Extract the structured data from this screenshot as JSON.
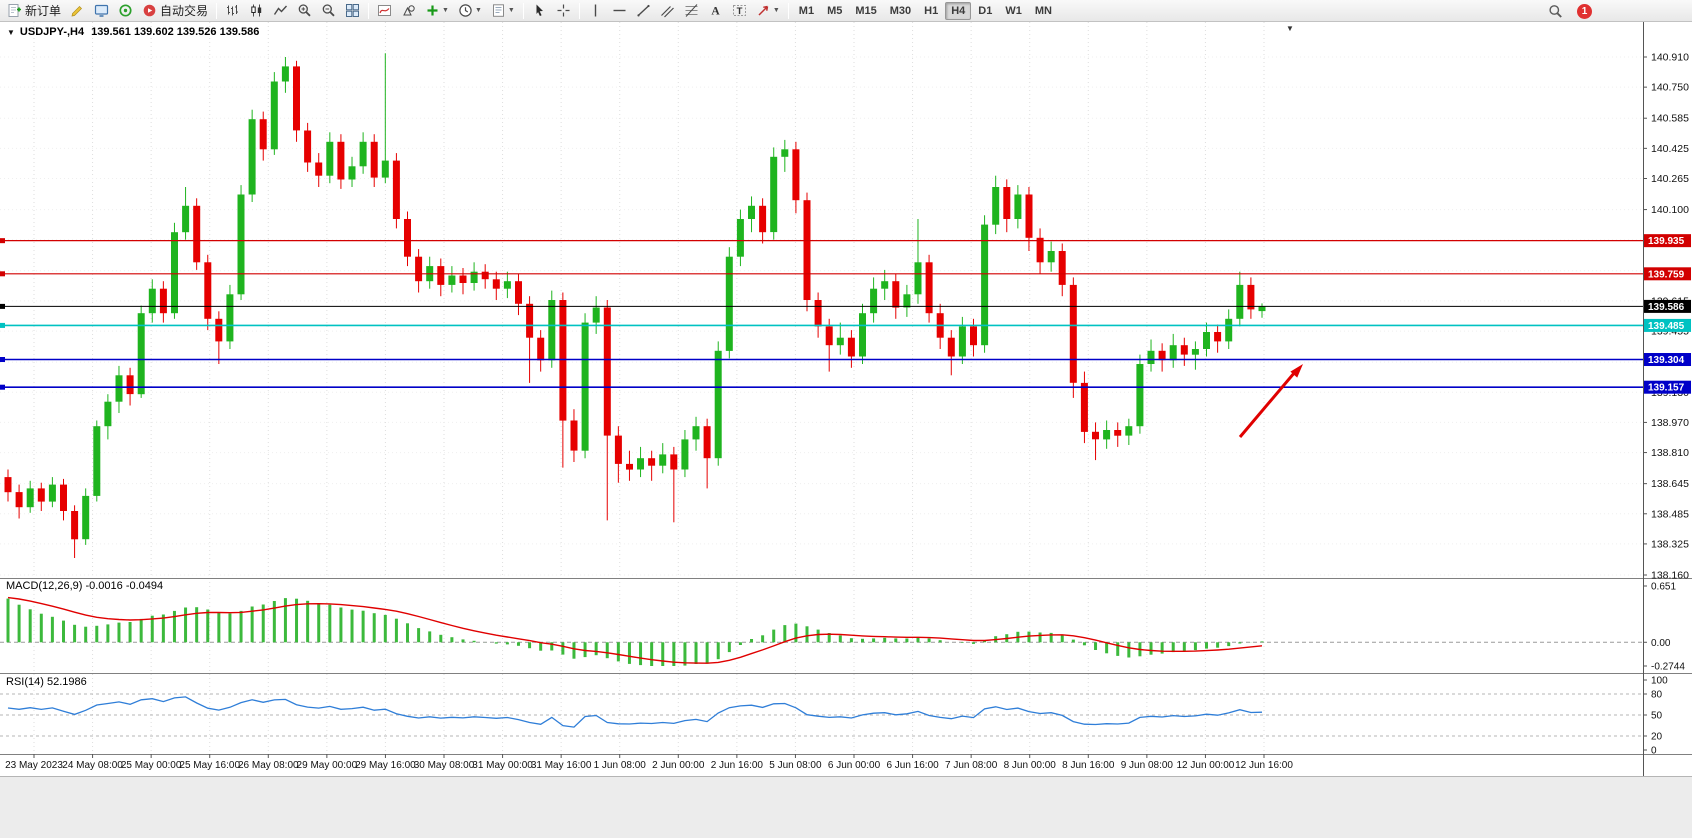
{
  "toolbar": {
    "new_order_label": "新订单",
    "auto_trading_label": "自动交易",
    "timeframes": [
      "M1",
      "M5",
      "M15",
      "M30",
      "H1",
      "H4",
      "D1",
      "W1",
      "MN"
    ],
    "active_timeframe": "H4",
    "notification_count": "1",
    "overflow_chevron": "▼"
  },
  "chart": {
    "collapse_arrow": "▼",
    "symbol_title": "USDJPY-,H4",
    "ohlc_values": "139.561 139.602 139.526 139.586",
    "price_axis": [
      "140.910",
      "140.750",
      "140.585",
      "140.425",
      "140.265",
      "140.100",
      "139.940",
      "139.775",
      "139.615",
      "139.455",
      "139.290",
      "139.130",
      "138.970",
      "138.810",
      "138.645",
      "138.485",
      "138.325",
      "138.160"
    ],
    "time_axis": [
      "23 May 2023",
      "24 May 08:00",
      "25 May 00:00",
      "25 May 16:00",
      "26 May 08:00",
      "29 May 00:00",
      "29 May 16:00",
      "30 May 08:00",
      "31 May 00:00",
      "31 May 16:00",
      "1 Jun 08:00",
      "2 Jun 00:00",
      "2 Jun 16:00",
      "5 Jun 08:00",
      "6 Jun 00:00",
      "6 Jun 16:00",
      "7 Jun 08:00",
      "8 Jun 00:00",
      "8 Jun 16:00",
      "9 Jun 08:00",
      "12 Jun 00:00",
      "12 Jun 16:00"
    ],
    "hlines": [
      {
        "price": "139.935",
        "color": "#d20000",
        "width": 1.2
      },
      {
        "price": "139.759",
        "color": "#d20000",
        "width": 1.2
      },
      {
        "price": "139.586",
        "color": "#000000",
        "width": 1,
        "role": "bid"
      },
      {
        "price": "139.485",
        "color": "#00c2c2",
        "width": 1.6
      },
      {
        "price": "139.304",
        "color": "#0000c8",
        "width": 1.6
      },
      {
        "price": "139.157",
        "color": "#0000c8",
        "width": 1.6
      }
    ]
  },
  "macd_panel": {
    "title_text": "MACD(12,26,9) -0.0016 -0.0494",
    "axis_labels": [
      "0.651",
      "0.00",
      "-0.2744"
    ],
    "range": [
      -0.2744,
      0.651
    ]
  },
  "rsi_panel": {
    "title_text": "RSI(14) 52.1986",
    "axis_labels": [
      "100",
      "80",
      "50",
      "20",
      "0"
    ],
    "levels": [
      80,
      50,
      20
    ],
    "range": [
      0,
      100
    ]
  },
  "colors": {
    "candle_up": "#1fb41f",
    "candle_down": "#e60000",
    "macd_histogram": "#3cb93c",
    "macd_signal": "#e00000",
    "rsi_line": "#2f7ed8",
    "annotation_arrow": "#e00000",
    "grid": "#dedede"
  },
  "annotation": {
    "type": "arrow-up-right"
  },
  "chart_data": {
    "type": "candlestick",
    "symbol": "USDJPY",
    "timeframe": "H4",
    "ylim": [
      138.16,
      140.91
    ],
    "indicators": {
      "macd": {
        "fast": 12,
        "slow": 26,
        "signal": 9,
        "main": -0.0016,
        "signal_value": -0.0494
      },
      "rsi": {
        "period": 14,
        "value": 52.1986
      }
    },
    "candles": [
      [
        138.68,
        138.72,
        138.55,
        138.6
      ],
      [
        138.6,
        138.64,
        138.46,
        138.52
      ],
      [
        138.52,
        138.66,
        138.49,
        138.62
      ],
      [
        138.62,
        138.65,
        138.5,
        138.55
      ],
      [
        138.55,
        138.68,
        138.52,
        138.64
      ],
      [
        138.64,
        138.67,
        138.45,
        138.5
      ],
      [
        138.5,
        138.53,
        138.25,
        138.35
      ],
      [
        138.35,
        138.62,
        138.32,
        138.58
      ],
      [
        138.58,
        138.98,
        138.55,
        138.95
      ],
      [
        138.95,
        139.12,
        138.88,
        139.08
      ],
      [
        139.08,
        139.27,
        139.02,
        139.22
      ],
      [
        139.22,
        139.26,
        139.06,
        139.12
      ],
      [
        139.12,
        139.59,
        139.1,
        139.55
      ],
      [
        139.55,
        139.73,
        139.5,
        139.68
      ],
      [
        139.68,
        139.72,
        139.5,
        139.55
      ],
      [
        139.55,
        140.03,
        139.52,
        139.98
      ],
      [
        139.98,
        140.22,
        139.94,
        140.12
      ],
      [
        140.12,
        140.16,
        139.78,
        139.82
      ],
      [
        139.82,
        139.86,
        139.46,
        139.52
      ],
      [
        139.52,
        139.56,
        139.28,
        139.4
      ],
      [
        139.4,
        139.7,
        139.36,
        139.65
      ],
      [
        139.65,
        140.23,
        139.62,
        140.18
      ],
      [
        140.18,
        140.63,
        140.14,
        140.58
      ],
      [
        140.58,
        140.62,
        140.36,
        140.42
      ],
      [
        140.42,
        140.83,
        140.39,
        140.78
      ],
      [
        140.78,
        140.91,
        140.72,
        140.86
      ],
      [
        140.86,
        140.89,
        140.46,
        140.52
      ],
      [
        140.52,
        140.56,
        140.3,
        140.35
      ],
      [
        140.35,
        140.4,
        140.22,
        140.28
      ],
      [
        140.28,
        140.51,
        140.24,
        140.46
      ],
      [
        140.46,
        140.5,
        140.21,
        140.26
      ],
      [
        140.26,
        140.38,
        140.22,
        140.33
      ],
      [
        140.33,
        140.51,
        140.29,
        140.46
      ],
      [
        140.46,
        140.5,
        140.22,
        140.27
      ],
      [
        140.27,
        140.93,
        140.24,
        140.36
      ],
      [
        140.36,
        140.4,
        140.0,
        140.05
      ],
      [
        140.05,
        140.09,
        139.8,
        139.85
      ],
      [
        139.85,
        139.89,
        139.66,
        139.72
      ],
      [
        139.72,
        139.85,
        139.68,
        139.8
      ],
      [
        139.8,
        139.84,
        139.64,
        139.7
      ],
      [
        139.7,
        139.8,
        139.66,
        139.75
      ],
      [
        139.75,
        139.79,
        139.65,
        139.71
      ],
      [
        139.71,
        139.82,
        139.67,
        139.77
      ],
      [
        139.77,
        139.81,
        139.68,
        139.73
      ],
      [
        139.73,
        139.77,
        139.62,
        139.68
      ],
      [
        139.68,
        139.77,
        139.63,
        139.72
      ],
      [
        139.72,
        139.76,
        139.54,
        139.6
      ],
      [
        139.6,
        139.64,
        139.18,
        139.42
      ],
      [
        139.42,
        139.46,
        139.24,
        139.3
      ],
      [
        139.3,
        139.67,
        139.26,
        139.62
      ],
      [
        139.62,
        139.66,
        138.73,
        138.98
      ],
      [
        138.98,
        139.04,
        138.76,
        138.82
      ],
      [
        138.82,
        139.55,
        138.78,
        139.5
      ],
      [
        139.5,
        139.64,
        139.44,
        139.58
      ],
      [
        139.58,
        139.62,
        138.45,
        138.9
      ],
      [
        138.9,
        138.95,
        138.65,
        138.75
      ],
      [
        138.75,
        138.82,
        138.66,
        138.72
      ],
      [
        138.72,
        138.84,
        138.68,
        138.78
      ],
      [
        138.78,
        138.82,
        138.66,
        138.74
      ],
      [
        138.74,
        138.86,
        138.7,
        138.8
      ],
      [
        138.8,
        138.84,
        138.44,
        138.72
      ],
      [
        138.72,
        138.93,
        138.68,
        138.88
      ],
      [
        138.88,
        139.0,
        138.82,
        138.95
      ],
      [
        138.95,
        138.99,
        138.62,
        138.78
      ],
      [
        138.78,
        139.4,
        138.74,
        139.35
      ],
      [
        139.35,
        139.9,
        139.31,
        139.85
      ],
      [
        139.85,
        140.1,
        139.8,
        140.05
      ],
      [
        140.05,
        140.17,
        139.98,
        140.12
      ],
      [
        140.12,
        140.16,
        139.92,
        139.98
      ],
      [
        139.98,
        140.43,
        139.94,
        140.38
      ],
      [
        140.38,
        140.47,
        140.3,
        140.42
      ],
      [
        140.42,
        140.46,
        140.08,
        140.15
      ],
      [
        140.15,
        140.19,
        139.56,
        139.62
      ],
      [
        139.62,
        139.66,
        139.42,
        139.48
      ],
      [
        139.48,
        139.52,
        139.24,
        139.38
      ],
      [
        139.38,
        139.5,
        139.33,
        139.42
      ],
      [
        139.42,
        139.46,
        139.26,
        139.32
      ],
      [
        139.32,
        139.6,
        139.28,
        139.55
      ],
      [
        139.55,
        139.74,
        139.5,
        139.68
      ],
      [
        139.68,
        139.78,
        139.62,
        139.72
      ],
      [
        139.72,
        139.76,
        139.52,
        139.58
      ],
      [
        139.58,
        139.7,
        139.53,
        139.65
      ],
      [
        139.65,
        140.05,
        139.6,
        139.82
      ],
      [
        139.82,
        139.86,
        139.5,
        139.55
      ],
      [
        139.55,
        139.6,
        139.36,
        139.42
      ],
      [
        139.42,
        139.46,
        139.22,
        139.32
      ],
      [
        139.32,
        139.53,
        139.28,
        139.48
      ],
      [
        139.48,
        139.52,
        139.32,
        139.38
      ],
      [
        139.38,
        140.07,
        139.34,
        140.02
      ],
      [
        140.02,
        140.28,
        139.97,
        140.22
      ],
      [
        140.22,
        140.26,
        139.98,
        140.05
      ],
      [
        140.05,
        140.23,
        140.0,
        140.18
      ],
      [
        140.18,
        140.22,
        139.88,
        139.95
      ],
      [
        139.95,
        140.0,
        139.76,
        139.82
      ],
      [
        139.82,
        139.93,
        139.77,
        139.88
      ],
      [
        139.88,
        139.92,
        139.64,
        139.7
      ],
      [
        139.7,
        139.74,
        139.1,
        139.18
      ],
      [
        139.18,
        139.24,
        138.86,
        138.92
      ],
      [
        138.92,
        138.97,
        138.77,
        138.88
      ],
      [
        138.88,
        138.98,
        138.83,
        138.93
      ],
      [
        138.93,
        138.97,
        138.84,
        138.9
      ],
      [
        138.9,
        138.99,
        138.85,
        138.95
      ],
      [
        138.95,
        139.33,
        138.91,
        139.28
      ],
      [
        139.28,
        139.41,
        139.24,
        139.35
      ],
      [
        139.35,
        139.39,
        139.24,
        139.3
      ],
      [
        139.3,
        139.44,
        139.26,
        139.38
      ],
      [
        139.38,
        139.42,
        139.27,
        139.33
      ],
      [
        139.33,
        139.4,
        139.25,
        139.36
      ],
      [
        139.36,
        139.5,
        139.32,
        139.45
      ],
      [
        139.45,
        139.49,
        139.34,
        139.4
      ],
      [
        139.4,
        139.57,
        139.36,
        139.52
      ],
      [
        139.52,
        139.77,
        139.48,
        139.7
      ],
      [
        139.7,
        139.74,
        139.52,
        139.57
      ],
      [
        139.561,
        139.602,
        139.526,
        139.586
      ]
    ]
  }
}
